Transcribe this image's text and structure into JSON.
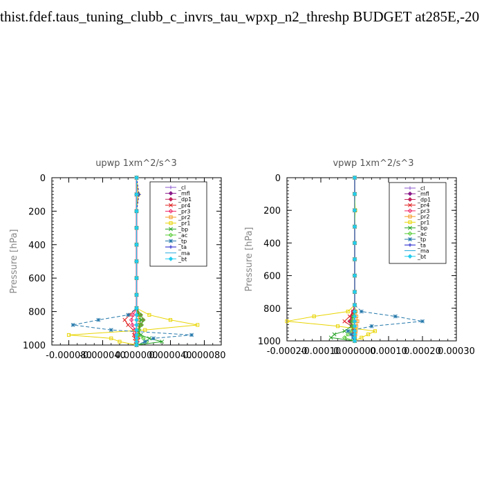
{
  "page": {
    "title": "thist.fdef.taus_tuning_clubb_c_invrs_tau_wpxp_n2_threshp  BUDGET at285E,-20"
  },
  "legend_styles": [
    {
      "name": "_cl",
      "color": "#8855cc",
      "marker": "+"
    },
    {
      "name": "_mfl",
      "color": "#8a1a8a",
      "marker": "dia"
    },
    {
      "name": "_dp1",
      "color": "#c0205a",
      "marker": "dia"
    },
    {
      "name": "_pr4",
      "color": "#e01818",
      "marker": "x"
    },
    {
      "name": "_pr3",
      "color": "#ee2266",
      "marker": "dia-open"
    },
    {
      "name": "_pr2",
      "color": "#f59a20",
      "marker": "sq-open"
    },
    {
      "name": "_pr1",
      "color": "#e8d400",
      "marker": "sq-open"
    },
    {
      "name": "_bp",
      "color": "#22a022",
      "marker": "x"
    },
    {
      "name": "_ac",
      "color": "#55cc33",
      "marker": "dia-open"
    },
    {
      "name": "_tp",
      "color": "#2277aa",
      "marker": "*"
    },
    {
      "name": "_ta",
      "color": "#1a1acc",
      "marker": "+"
    },
    {
      "name": "_ma",
      "color": "#22aadd",
      "marker": "none"
    },
    {
      "name": "_bt",
      "color": "#22ccee",
      "marker": "dia"
    }
  ],
  "chart_data": [
    {
      "type": "line",
      "title": "upwp   1xm^2/s^3",
      "ylabel": "Pressure [hPa]",
      "xlim": [
        -0.0001,
        0.0001
      ],
      "ylim": [
        1000,
        0
      ],
      "y_inverted": true,
      "xticks": [
        -8e-05,
        -4e-05,
        0,
        4e-05,
        8e-05
      ],
      "xtick_labels": [
        "-0.000080",
        "-0.000040",
        "0.000000",
        "0.000040",
        "0.000080"
      ],
      "yticks": [
        0,
        200,
        400,
        600,
        800,
        1000
      ],
      "ytick_labels": [
        "0",
        "200",
        "400",
        "600",
        "800",
        "1000"
      ],
      "legend_position": "top-right",
      "pressure": [
        0,
        100,
        200,
        300,
        400,
        500,
        600,
        700,
        780,
        820,
        850,
        880,
        910,
        940,
        960,
        980,
        1000
      ],
      "series": [
        {
          "name": "_cl",
          "x": [
            0,
            0,
            0,
            0,
            0,
            0,
            0,
            0,
            0,
            0,
            0,
            0,
            0,
            0,
            0,
            0,
            0
          ]
        },
        {
          "name": "_mfl",
          "x": [
            0,
            0,
            0,
            0,
            0,
            0,
            0,
            0,
            0,
            0,
            0,
            0,
            0,
            0,
            0,
            0,
            0
          ]
        },
        {
          "name": "_dp1",
          "x": [
            0,
            0,
            0,
            0,
            0,
            0,
            0,
            0,
            0,
            5e-06,
            8e-06,
            5e-06,
            3e-06,
            2e-06,
            2e-06,
            1e-06,
            0
          ]
        },
        {
          "name": "_pr4",
          "x": [
            0,
            0,
            0,
            0,
            0,
            0,
            0,
            0,
            0,
            -8e-06,
            -1.4e-05,
            -1e-05,
            -4e-06,
            -3e-06,
            -2e-06,
            -1e-06,
            0
          ]
        },
        {
          "name": "_pr3",
          "x": [
            0,
            0,
            0,
            0,
            0,
            0,
            0,
            0,
            0,
            -4e-06,
            -6e-06,
            -5e-06,
            -2e-06,
            -1e-06,
            0,
            0,
            0
          ]
        },
        {
          "name": "_pr2",
          "x": [
            0,
            0,
            0,
            0,
            0,
            0,
            0,
            0,
            0,
            2e-06,
            3e-06,
            3e-06,
            2e-06,
            1e-06,
            1e-06,
            0,
            0
          ]
        },
        {
          "name": "_pr1",
          "x": [
            0,
            2e-06,
            0,
            0,
            0,
            0,
            0,
            0,
            0,
            1.5e-05,
            4e-05,
            7.2e-05,
            1e-05,
            -8e-05,
            -3e-05,
            -2e-05,
            0
          ]
        },
        {
          "name": "_bp",
          "x": [
            0,
            0,
            0,
            0,
            0,
            0,
            0,
            0,
            0,
            3e-06,
            5e-06,
            4e-06,
            2e-06,
            5e-06,
            1.5e-05,
            3e-05,
            0
          ]
        },
        {
          "name": "_ac",
          "x": [
            0,
            0,
            0,
            0,
            0,
            0,
            0,
            0,
            0,
            5e-06,
            8e-06,
            6e-06,
            3e-06,
            2e-06,
            8e-06,
            1.2e-05,
            0
          ]
        },
        {
          "name": "_tp",
          "x": [
            0,
            0,
            0,
            0,
            0,
            0,
            0,
            0,
            0,
            -1e-05,
            -4.5e-05,
            -7.5e-05,
            -3e-05,
            6.5e-05,
            2e-05,
            1e-05,
            0
          ]
        },
        {
          "name": "_ta",
          "x": [
            0,
            3e-06,
            0,
            0,
            0,
            0,
            0,
            0,
            0,
            0,
            0,
            0,
            0,
            0,
            0,
            0,
            0
          ]
        },
        {
          "name": "_ma",
          "x": [
            0,
            0,
            0,
            0,
            0,
            0,
            0,
            0,
            0,
            0,
            0,
            0,
            0,
            0,
            0,
            0,
            0
          ]
        },
        {
          "name": "_bt",
          "x": [
            0,
            0,
            0,
            0,
            0,
            0,
            0,
            0,
            0,
            0,
            0,
            0,
            0,
            0,
            0,
            0,
            0
          ]
        }
      ]
    },
    {
      "type": "line",
      "title": "vpwp   1xm^2/s^3",
      "ylabel": "Pressure [hPa]",
      "xlim": [
        -0.0002,
        0.0003
      ],
      "ylim": [
        1000,
        0
      ],
      "y_inverted": true,
      "xticks": [
        -0.0002,
        -0.0001,
        0,
        0.0001,
        0.0002,
        0.0003
      ],
      "xtick_labels": [
        "-0.00020",
        "-0.00010",
        "0.000000",
        "0.00010",
        "0.00020",
        "0.00030"
      ],
      "yticks": [
        0,
        200,
        400,
        600,
        800,
        1000
      ],
      "ytick_labels": [
        "0",
        "200",
        "400",
        "600",
        "800",
        "1000"
      ],
      "legend_position": "top-right",
      "pressure": [
        0,
        100,
        200,
        300,
        400,
        500,
        600,
        700,
        780,
        820,
        850,
        880,
        910,
        940,
        960,
        980,
        1000
      ],
      "series": [
        {
          "name": "_cl",
          "x": [
            0,
            0,
            0,
            0,
            0,
            0,
            0,
            0,
            0,
            0,
            0,
            0,
            0,
            0,
            0,
            0,
            0
          ]
        },
        {
          "name": "_mfl",
          "x": [
            0,
            0,
            0,
            0,
            0,
            0,
            0,
            0,
            0,
            0,
            0,
            0,
            0,
            0,
            0,
            0,
            0
          ]
        },
        {
          "name": "_dp1",
          "x": [
            0,
            0,
            0,
            0,
            0,
            0,
            0,
            0,
            0,
            -5e-06,
            -1e-05,
            -1.5e-05,
            -8e-06,
            -3e-06,
            -2e-06,
            -1e-06,
            0
          ]
        },
        {
          "name": "_pr4",
          "x": [
            0,
            0,
            0,
            0,
            0,
            0,
            0,
            0,
            0,
            -5e-06,
            -1.5e-05,
            -3e-05,
            -1e-05,
            -5e-06,
            -2e-06,
            -1e-06,
            0
          ]
        },
        {
          "name": "_pr3",
          "x": [
            0,
            0,
            0,
            0,
            0,
            0,
            0,
            0,
            0,
            -3e-06,
            -8e-06,
            -1.2e-05,
            -5e-06,
            -2e-06,
            0,
            0,
            0
          ]
        },
        {
          "name": "_pr2",
          "x": [
            0,
            0,
            0,
            0,
            0,
            0,
            0,
            0,
            0,
            3e-06,
            5e-06,
            8e-06,
            5e-06,
            3e-06,
            2e-06,
            1e-06,
            0
          ]
        },
        {
          "name": "_pr1",
          "x": [
            0,
            0,
            2e-06,
            0,
            0,
            0,
            0,
            0,
            0,
            -2e-05,
            -0.00012,
            -0.0002,
            -5e-05,
            6e-05,
            4e-05,
            2e-05,
            0
          ]
        },
        {
          "name": "_bp",
          "x": [
            0,
            0,
            0,
            0,
            0,
            0,
            0,
            0,
            0,
            0,
            -5e-06,
            -1e-05,
            -1e-05,
            -3e-05,
            -6e-05,
            -7e-05,
            0
          ]
        },
        {
          "name": "_ac",
          "x": [
            0,
            0,
            0,
            0,
            0,
            0,
            0,
            0,
            0,
            0,
            -3e-06,
            -5e-06,
            -5e-06,
            -1e-05,
            -2e-05,
            -3e-05,
            0
          ]
        },
        {
          "name": "_tp",
          "x": [
            0,
            0,
            0,
            0,
            0,
            0,
            0,
            0,
            0,
            2e-05,
            0.00012,
            0.0002,
            5e-05,
            -2e-05,
            -1e-05,
            -5e-06,
            0
          ]
        },
        {
          "name": "_ta",
          "x": [
            0,
            0,
            0,
            0,
            0,
            0,
            0,
            0,
            0,
            0,
            0,
            0,
            0,
            0,
            0,
            0,
            0
          ]
        },
        {
          "name": "_ma",
          "x": [
            0,
            0,
            0,
            0,
            0,
            0,
            0,
            0,
            0,
            0,
            0,
            0,
            0,
            0,
            0,
            0,
            0
          ]
        },
        {
          "name": "_bt",
          "x": [
            0,
            0,
            0,
            0,
            0,
            0,
            0,
            0,
            0,
            0,
            0,
            0,
            0,
            0,
            0,
            0,
            0
          ]
        }
      ]
    }
  ]
}
